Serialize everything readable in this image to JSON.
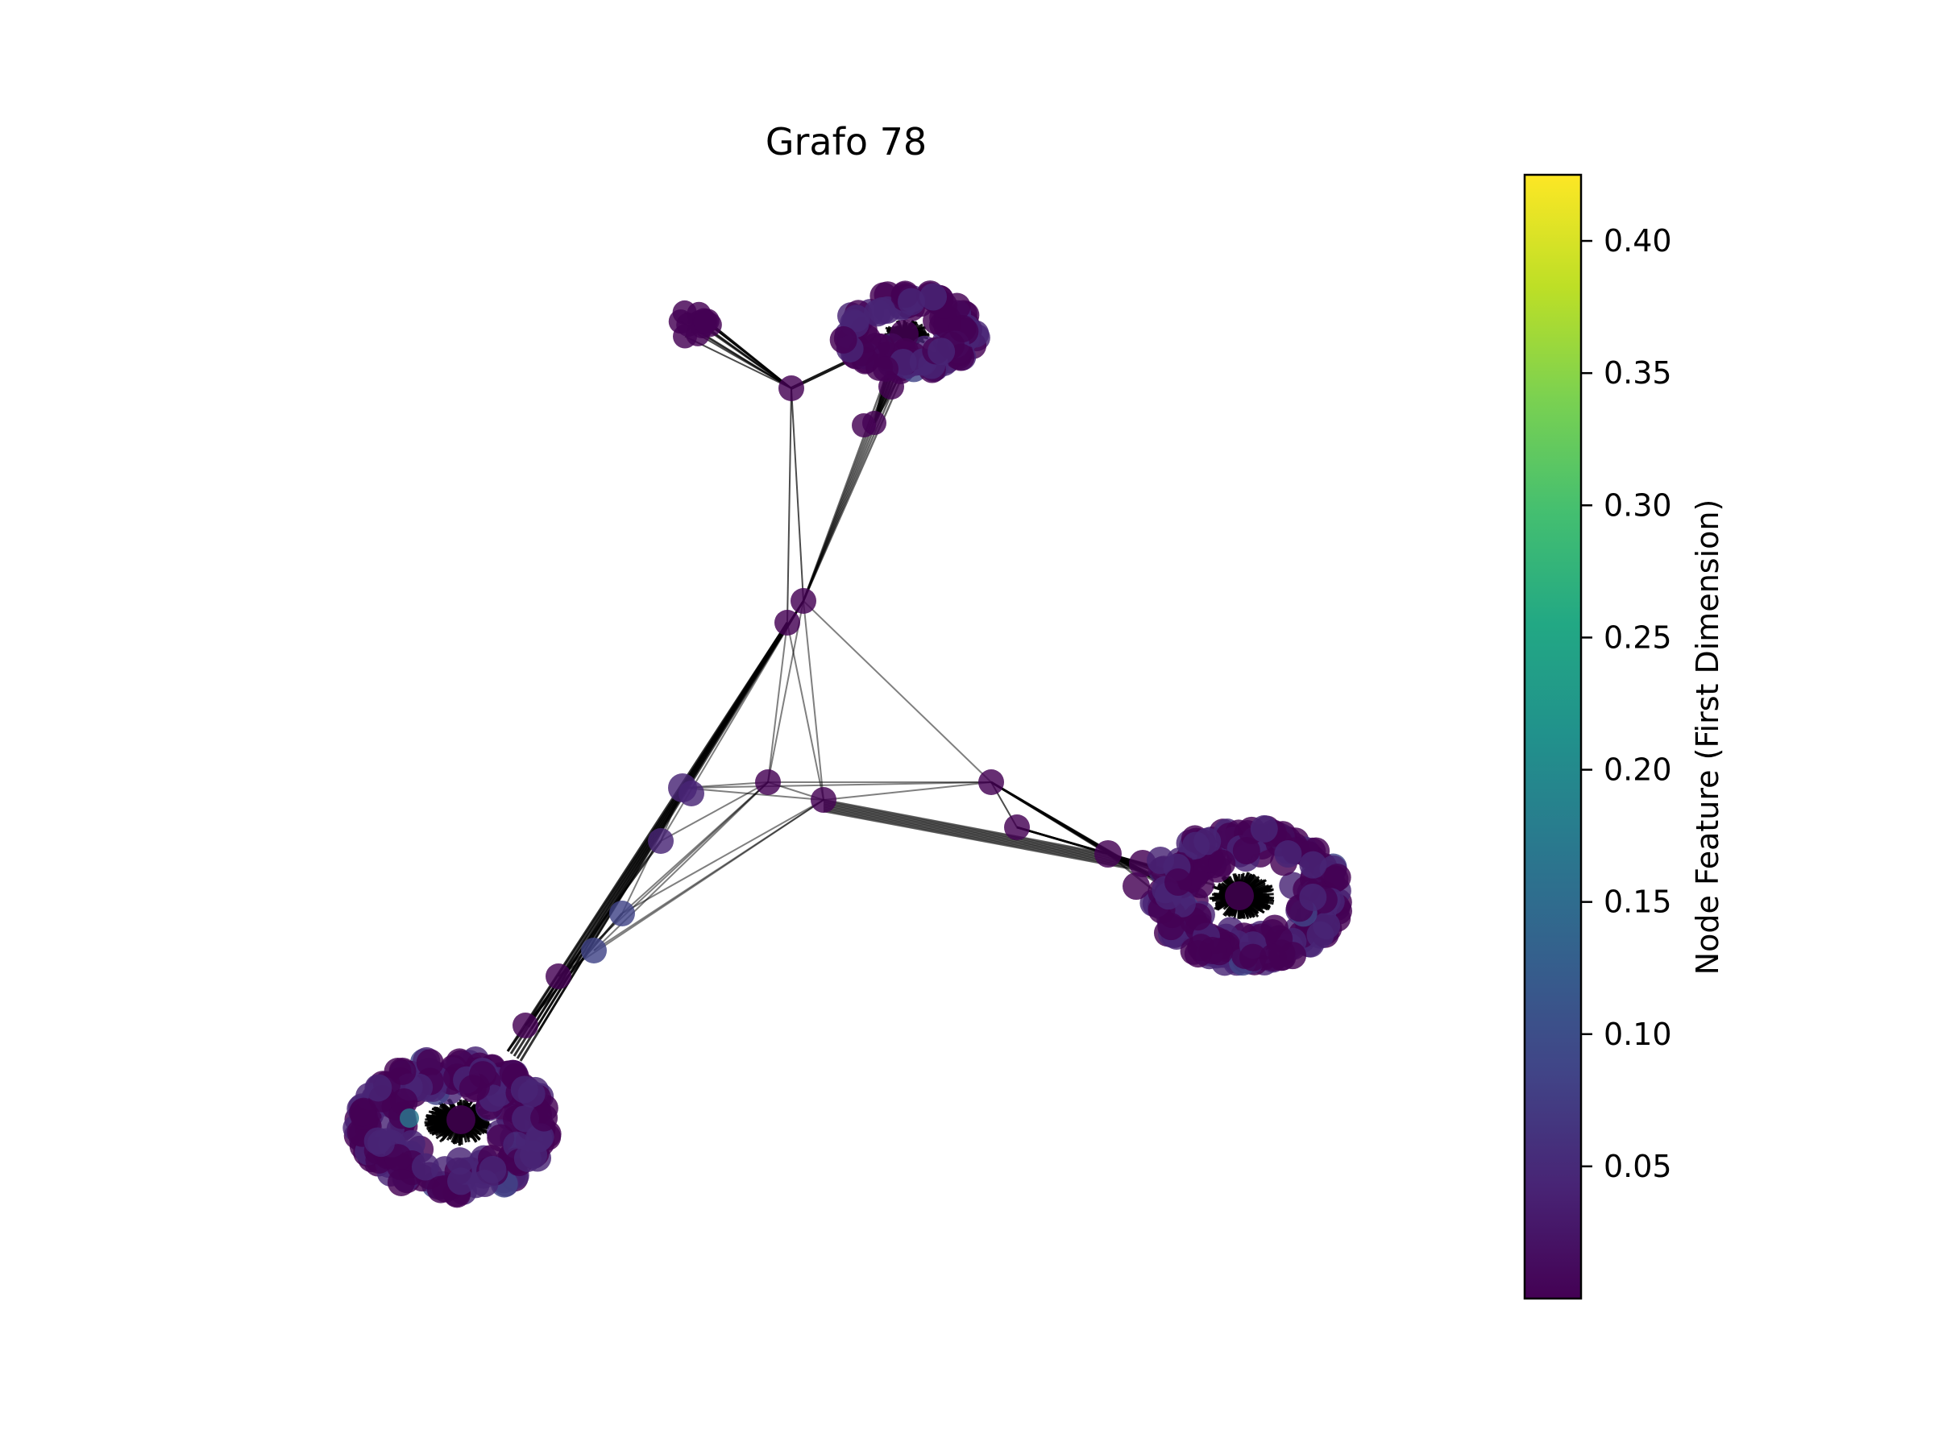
{
  "title": "Grafo 78",
  "colorbar": {
    "label": "Node Feature (First Dimension)",
    "colormap": "viridis",
    "ticks": [
      "0.05",
      "0.10",
      "0.15",
      "0.20",
      "0.25",
      "0.30",
      "0.35",
      "0.40"
    ],
    "tick_values": [
      0.05,
      0.1,
      0.15,
      0.2,
      0.25,
      0.3,
      0.35,
      0.4
    ],
    "range": [
      0.0,
      0.425
    ]
  },
  "colors": {
    "edge": "#000000",
    "node_base": "#440154"
  }
}
